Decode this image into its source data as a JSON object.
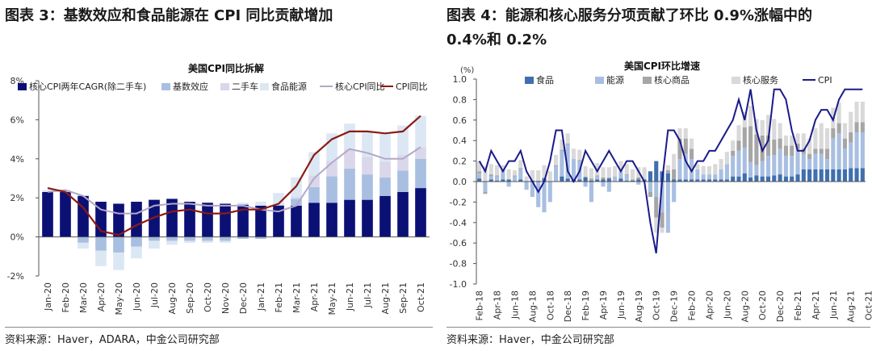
{
  "left": {
    "heading": "图表 3：基数效应和食品能源在 CPI 同比贡献增加",
    "source": "资料来源：Haver，ADARA，中金公司研究部"
  },
  "right": {
    "heading_line1": "图表 4：能源和核心服务分项贡献了环比 0.9%涨幅中的",
    "heading_line2": "0.4%和 0.2%",
    "source": "资料来源：Haver，中金公司研究部"
  },
  "chart_data": [
    {
      "type": "bar",
      "title": "美国CPI同比拆解",
      "stacked": true,
      "ylim": [
        -2,
        8
      ],
      "yticks": [
        "-2%",
        "0%",
        "2%",
        "4%",
        "6%",
        "8%"
      ],
      "ytick_values": [
        -2,
        0,
        2,
        4,
        6,
        8
      ],
      "categories": [
        "Jan-20",
        "Feb-20",
        "Mar-20",
        "Apr-20",
        "May-20",
        "Jun-20",
        "Jul-20",
        "Aug-20",
        "Sep-20",
        "Oct-20",
        "Nov-20",
        "Dec-20",
        "Jan-21",
        "Feb-21",
        "Mar-21",
        "Apr-21",
        "May-21",
        "Jun-21",
        "Jul-21",
        "Aug-21",
        "Sep-21",
        "Oct-21"
      ],
      "series": [
        {
          "name": "核心CPI两年CAGR(除二手车)",
          "kind": "bar",
          "color": "#0b1075",
          "values": [
            2.3,
            2.3,
            2.1,
            1.8,
            1.7,
            1.8,
            1.9,
            1.95,
            1.8,
            1.75,
            1.7,
            1.65,
            1.6,
            1.6,
            1.6,
            1.75,
            1.75,
            1.9,
            1.9,
            2.1,
            2.3,
            2.5
          ]
        },
        {
          "name": "基数效应",
          "kind": "bar",
          "color": "#a8bfe1",
          "values": [
            0,
            0,
            -0.3,
            -0.7,
            -0.8,
            -0.5,
            -0.2,
            -0.2,
            -0.2,
            -0.2,
            -0.2,
            -0.1,
            -0.1,
            0.05,
            0.35,
            0.8,
            1.35,
            1.6,
            1.3,
            0.95,
            1.1,
            1.5
          ]
        },
        {
          "name": "二手车",
          "kind": "bar",
          "color": "#dad7ea",
          "values": [
            0,
            0,
            0,
            0,
            0,
            0,
            0,
            0,
            0,
            0,
            0,
            0,
            0,
            0,
            0.1,
            0.6,
            0.8,
            1.0,
            0.9,
            0.8,
            0.8,
            0.6
          ]
        },
        {
          "name": "食品能源",
          "kind": "bar",
          "color": "#dce7f4",
          "values": [
            0.1,
            0.1,
            -0.3,
            -0.8,
            -0.9,
            -0.6,
            -0.4,
            -0.2,
            -0.1,
            -0.1,
            -0.1,
            0.1,
            0.2,
            0.6,
            1.0,
            1.2,
            1.4,
            1.3,
            1.3,
            1.5,
            1.5,
            1.6
          ]
        },
        {
          "name": "核心CPI同比",
          "kind": "line",
          "color": "#b3a8c8",
          "values": [
            2.3,
            2.4,
            2.1,
            1.4,
            1.2,
            1.2,
            1.6,
            1.7,
            1.7,
            1.6,
            1.6,
            1.6,
            1.4,
            1.3,
            1.6,
            3.0,
            3.8,
            4.5,
            4.3,
            4.0,
            4.0,
            4.6
          ]
        },
        {
          "name": "CPI同比",
          "kind": "line",
          "color": "#8b1a14",
          "values": [
            2.5,
            2.3,
            1.5,
            0.3,
            0.1,
            0.6,
            1.0,
            1.3,
            1.4,
            1.2,
            1.2,
            1.4,
            1.4,
            1.7,
            2.6,
            4.2,
            5.0,
            5.4,
            5.4,
            5.3,
            5.4,
            6.2
          ]
        }
      ]
    },
    {
      "type": "bar",
      "title": "美国CPI环比增速",
      "stacked": true,
      "yunit": "(%)",
      "ylim": [
        -1.0,
        1.0
      ],
      "yticks": [
        "-1.0",
        "-0.8",
        "-0.6",
        "-0.4",
        "-0.2",
        "0.0",
        "0.2",
        "0.4",
        "0.6",
        "0.8",
        "1.0"
      ],
      "ytick_values": [
        -1.0,
        -0.8,
        -0.6,
        -0.4,
        -0.2,
        0.0,
        0.2,
        0.4,
        0.6,
        0.8,
        1.0
      ],
      "tick_labels": [
        "Feb-18",
        "Apr-18",
        "Jun-18",
        "Aug-18",
        "Oct-18",
        "Dec-18",
        "Feb-19",
        "Apr-19",
        "Jun-19",
        "Aug-19",
        "Oct-19",
        "Dec-19",
        "Feb-20",
        "Apr-20",
        "Jun-20",
        "Aug-20",
        "Oct-20",
        "Dec-20",
        "Feb-21",
        "Apr-21",
        "Jun-21",
        "Aug-21",
        "Oct-21"
      ],
      "series": [
        {
          "name": "食品",
          "kind": "bar",
          "color": "#3f6fae",
          "values": [
            0.03,
            0.0,
            0.02,
            0.01,
            0.02,
            0.02,
            0.0,
            0.02,
            0.0,
            0.01,
            0.0,
            0.03,
            0.0,
            0.0,
            0.05,
            0.03,
            0.02,
            0.02,
            0.04,
            0.01,
            0.02,
            0.02,
            0.03,
            0.0,
            0.03,
            0.01,
            0.01,
            0.02,
            0.02,
            0.1,
            0.2,
            0.1,
            0.08,
            0.02,
            0.02,
            0.02,
            0.02,
            0.02,
            0.02,
            0.02,
            0.02,
            0.02,
            0.02,
            0.05,
            0.05,
            0.08,
            0.04,
            0.06,
            0.05,
            0.05,
            0.06,
            0.07,
            0.05,
            0.05,
            0.07,
            0.12,
            0.12,
            0.12,
            0.12,
            0.12,
            0.12,
            0.12,
            0.12,
            0.13,
            0.13,
            0.13
          ]
        },
        {
          "name": "能源",
          "kind": "bar",
          "color": "#a8bfe1",
          "values": [
            0.05,
            -0.1,
            0.03,
            0.04,
            0.08,
            -0.05,
            0.05,
            0.1,
            -0.08,
            -0.15,
            -0.25,
            -0.3,
            -0.2,
            0.15,
            0.25,
            0.33,
            0.2,
            0.18,
            -0.05,
            -0.2,
            0.03,
            -0.05,
            -0.1,
            0.05,
            0.07,
            0.05,
            0.0,
            -0.03,
            0.0,
            -0.1,
            -0.15,
            -0.3,
            -0.5,
            -0.2,
            0.2,
            0.25,
            0.2,
            0.1,
            0.05,
            0.05,
            0.05,
            0.1,
            0.15,
            0.2,
            0.25,
            0.25,
            0.15,
            0.1,
            0.15,
            0.2,
            0.2,
            0.25,
            0.2,
            0.2,
            0.25,
            0.15,
            0.1,
            0.15,
            0.15,
            0.1,
            0.3,
            0.35,
            0.2,
            0.25,
            0.35,
            0.35
          ]
        },
        {
          "name": "核心商品",
          "kind": "bar",
          "color": "#a6a6a6",
          "values": [
            0.02,
            -0.02,
            0.02,
            0.01,
            0.01,
            0.0,
            0.01,
            0.01,
            0.0,
            0.0,
            0.01,
            0.01,
            0.0,
            0.01,
            0.01,
            0.01,
            0.0,
            0.01,
            0.01,
            0.02,
            0.01,
            0.02,
            0.01,
            0.0,
            0.0,
            0.01,
            0.01,
            0.02,
            0.0,
            -0.05,
            -0.2,
            -0.15,
            0.03,
            0.1,
            0.2,
            0.15,
            0.1,
            0.0,
            0.0,
            0.0,
            0.0,
            0.0,
            0.0,
            0.05,
            0.1,
            0.2,
            0.35,
            0.3,
            0.25,
            0.2,
            0.15,
            0.1,
            0.1,
            0.1,
            0.05,
            0.05,
            0.05,
            0.05,
            0.05,
            0.1,
            0.1,
            0.1,
            0.1,
            0.1,
            0.1,
            0.1
          ]
        },
        {
          "name": "核心服务",
          "kind": "bar",
          "color": "#d9d9d9",
          "values": [
            0.1,
            0.15,
            0.1,
            0.1,
            0.05,
            0.1,
            0.05,
            0.08,
            0.05,
            0.1,
            0.1,
            0.12,
            0.1,
            0.1,
            0.1,
            0.1,
            0.1,
            0.1,
            0.1,
            0.1,
            0.12,
            0.1,
            0.1,
            0.1,
            0.1,
            0.1,
            0.1,
            0.1,
            0.12,
            0.0,
            -0.15,
            -0.05,
            0.05,
            0.15,
            0.1,
            0.1,
            0.1,
            0.05,
            0.08,
            0.08,
            0.1,
            0.1,
            0.12,
            0.1,
            0.15,
            0.15,
            0.2,
            0.15,
            0.15,
            0.2,
            0.2,
            0.15,
            0.1,
            0.1,
            0.1,
            0.15,
            0.15,
            0.2,
            0.25,
            0.2,
            0.2,
            0.2,
            0.15,
            0.2,
            0.2,
            0.2
          ]
        },
        {
          "name": "CPI",
          "kind": "line",
          "color": "#1a1a8c",
          "values": [
            0.2,
            0.1,
            0.3,
            0.2,
            0.1,
            0.2,
            0.2,
            0.3,
            0.1,
            0.0,
            -0.1,
            0.0,
            0.2,
            0.5,
            0.5,
            0.1,
            0.0,
            0.1,
            0.3,
            0.2,
            0.1,
            0.2,
            0.3,
            0.2,
            0.1,
            0.2,
            0.2,
            0.1,
            0.0,
            -0.4,
            -0.7,
            0.0,
            0.5,
            0.5,
            0.4,
            0.2,
            0.1,
            0.2,
            0.2,
            0.3,
            0.3,
            0.4,
            0.5,
            0.6,
            0.8,
            0.6,
            0.9,
            0.5,
            0.3,
            0.4,
            0.9,
            0.9,
            0.8,
            0.5,
            0.3,
            0.3,
            0.4,
            0.6,
            0.7,
            0.7,
            0.6,
            0.8,
            0.9,
            0.9,
            0.9,
            0.9
          ]
        }
      ]
    }
  ]
}
